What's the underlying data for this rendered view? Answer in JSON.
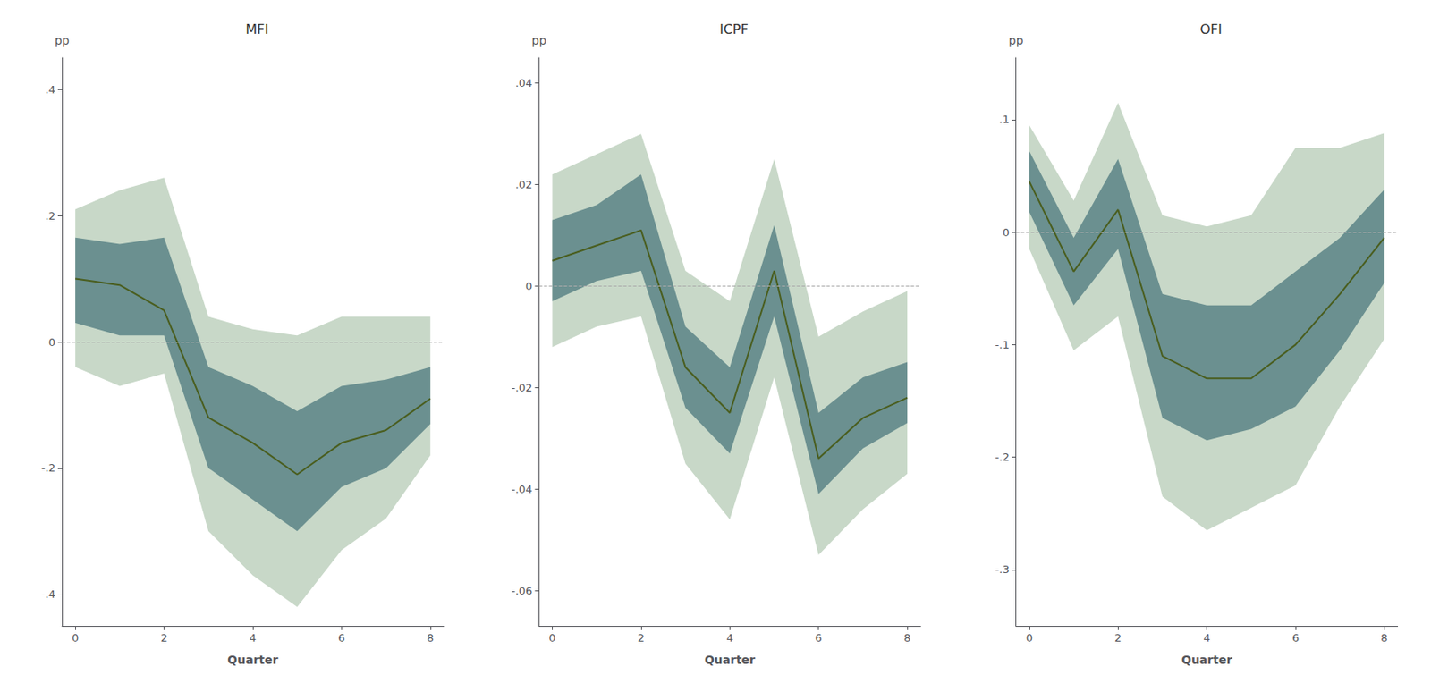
{
  "chart_data": [
    {
      "type": "line",
      "title": "MFI",
      "xlabel": "Quarter",
      "ylabel": "pp",
      "x": [
        0,
        1,
        2,
        3,
        4,
        5,
        6,
        7,
        8
      ],
      "values": [
        0.1,
        0.09,
        0.05,
        -0.12,
        -0.16,
        -0.21,
        -0.16,
        -0.14,
        -0.09
      ],
      "color": "#4a5e1f",
      "ci68": {
        "lower": [
          0.03,
          0.01,
          0.01,
          -0.2,
          -0.25,
          -0.3,
          -0.23,
          -0.2,
          -0.13
        ],
        "upper": [
          0.165,
          0.155,
          0.165,
          -0.04,
          -0.07,
          -0.11,
          -0.07,
          -0.06,
          -0.04
        ],
        "color": "#6b9090"
      },
      "ci95": {
        "lower": [
          -0.04,
          -0.07,
          -0.05,
          -0.3,
          -0.37,
          -0.42,
          -0.33,
          -0.28,
          -0.18
        ],
        "upper": [
          0.21,
          0.24,
          0.26,
          0.04,
          0.02,
          0.01,
          0.04,
          0.04,
          0.04
        ],
        "color": "#c8d8c8"
      },
      "zero_line": {
        "value": 0,
        "color": "#aaaaaa",
        "line_style": "dashed"
      },
      "xlim": [
        -0.3,
        8.3
      ],
      "xticks": [
        0,
        2,
        4,
        6,
        8
      ],
      "ylim": [
        -0.45,
        0.45
      ],
      "yticks": [
        {
          "value": -0.4,
          "label": "-.4"
        },
        {
          "value": -0.2,
          "label": "-.2"
        },
        0,
        {
          "value": 0.2,
          "label": ".2"
        },
        {
          "value": 0.4,
          "label": ".4"
        }
      ],
      "grid": false
    },
    {
      "type": "line",
      "title": "ICPF",
      "xlabel": "Quarter",
      "ylabel": "pp",
      "x": [
        0,
        1,
        2,
        3,
        4,
        5,
        6,
        7,
        8
      ],
      "values": [
        0.005,
        0.008,
        0.011,
        -0.016,
        -0.025,
        0.003,
        -0.034,
        -0.026,
        -0.022
      ],
      "color": "#4a5e1f",
      "ci68": {
        "lower": [
          -0.003,
          0.001,
          0.003,
          -0.024,
          -0.033,
          -0.006,
          -0.041,
          -0.032,
          -0.027
        ],
        "upper": [
          0.013,
          0.016,
          0.022,
          -0.008,
          -0.016,
          0.012,
          -0.025,
          -0.018,
          -0.015
        ],
        "color": "#6b9090"
      },
      "ci95": {
        "lower": [
          -0.012,
          -0.008,
          -0.006,
          -0.035,
          -0.046,
          -0.018,
          -0.053,
          -0.044,
          -0.037
        ],
        "upper": [
          0.022,
          0.026,
          0.03,
          0.003,
          -0.003,
          0.025,
          -0.01,
          -0.005,
          -0.001
        ],
        "color": "#c8d8c8"
      },
      "zero_line": {
        "value": 0,
        "color": "#aaaaaa",
        "line_style": "dashed"
      },
      "xlim": [
        -0.3,
        8.3
      ],
      "xticks": [
        0,
        2,
        4,
        6,
        8
      ],
      "ylim": [
        -0.067,
        0.045
      ],
      "yticks": [
        {
          "value": -0.06,
          "label": "-.06"
        },
        {
          "value": -0.04,
          "label": "-.04"
        },
        {
          "value": -0.02,
          "label": "-.02"
        },
        0,
        {
          "value": 0.02,
          "label": ".02"
        },
        {
          "value": 0.04,
          "label": ".04"
        }
      ],
      "grid": false
    },
    {
      "type": "line",
      "title": "OFI",
      "xlabel": "Quarter",
      "ylabel": "pp",
      "x": [
        0,
        1,
        2,
        3,
        4,
        5,
        6,
        7,
        8
      ],
      "values": [
        0.045,
        -0.035,
        0.02,
        -0.11,
        -0.13,
        -0.13,
        -0.1,
        -0.055,
        -0.005
      ],
      "color": "#4a5e1f",
      "ci68": {
        "lower": [
          0.018,
          -0.065,
          -0.015,
          -0.165,
          -0.185,
          -0.175,
          -0.155,
          -0.105,
          -0.045
        ],
        "upper": [
          0.072,
          -0.005,
          0.065,
          -0.055,
          -0.065,
          -0.065,
          -0.035,
          -0.005,
          0.038
        ],
        "color": "#6b9090"
      },
      "ci95": {
        "lower": [
          -0.015,
          -0.105,
          -0.075,
          -0.235,
          -0.265,
          -0.245,
          -0.225,
          -0.155,
          -0.095
        ],
        "upper": [
          0.095,
          0.028,
          0.115,
          0.015,
          0.005,
          0.015,
          0.075,
          0.075,
          0.088
        ],
        "color": "#c8d8c8"
      },
      "zero_line": {
        "value": 0,
        "color": "#aaaaaa",
        "line_style": "dashed"
      },
      "xlim": [
        -0.3,
        8.3
      ],
      "xticks": [
        0,
        2,
        4,
        6,
        8
      ],
      "ylim": [
        -0.35,
        0.155
      ],
      "yticks": [
        {
          "value": -0.3,
          "label": "-.3"
        },
        {
          "value": -0.2,
          "label": "-.2"
        },
        {
          "value": -0.1,
          "label": "-.1"
        },
        0,
        {
          "value": 0.1,
          "label": ".1"
        }
      ],
      "grid": false
    }
  ]
}
